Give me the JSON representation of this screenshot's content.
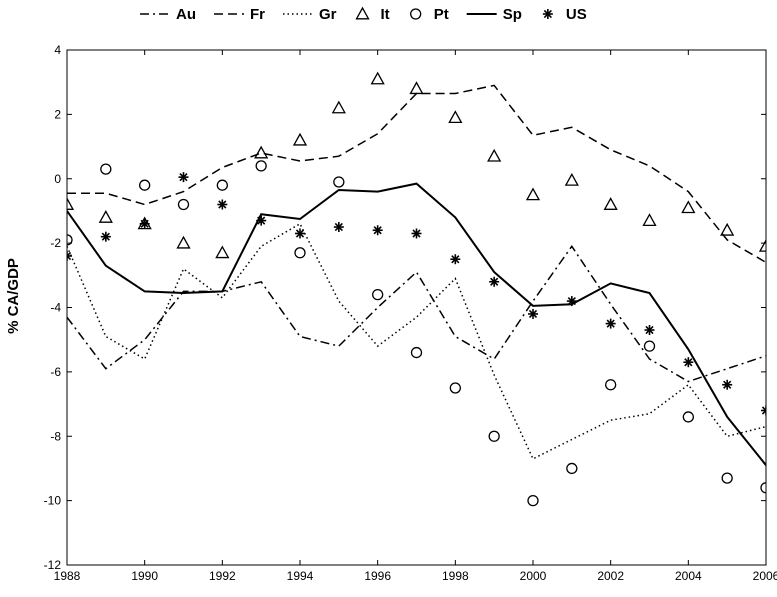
{
  "chart_data": {
    "type": "line",
    "ylabel": "% CA/GDP",
    "xlim": [
      1988,
      2006
    ],
    "ylim": [
      -12,
      4
    ],
    "xticks": [
      1988,
      1990,
      1992,
      1994,
      1996,
      1998,
      2000,
      2002,
      2004,
      2006
    ],
    "yticks": [
      -12,
      -10,
      -8,
      -6,
      -4,
      -2,
      0,
      2,
      4
    ],
    "grid": false,
    "legend_position": "top",
    "x": [
      1988,
      1989,
      1990,
      1991,
      1992,
      1993,
      1994,
      1995,
      1996,
      1997,
      1998,
      1999,
      2000,
      2001,
      2002,
      2003,
      2004,
      2005,
      2006
    ],
    "series": [
      {
        "name": "Au",
        "style": "dashdot",
        "values": [
          -4.3,
          -5.9,
          -5.0,
          -3.5,
          -3.5,
          -3.2,
          -4.9,
          -5.2,
          -4.0,
          -2.9,
          -4.9,
          -5.6,
          -3.8,
          -2.1,
          -3.9,
          -5.6,
          -6.3,
          -5.9,
          -5.5
        ]
      },
      {
        "name": "Fr",
        "style": "dashed",
        "values": [
          -0.45,
          -0.45,
          -0.8,
          -0.4,
          0.35,
          0.8,
          0.55,
          0.7,
          1.4,
          2.65,
          2.65,
          2.9,
          1.35,
          1.6,
          0.9,
          0.4,
          -0.4,
          -1.9,
          -2.6
        ]
      },
      {
        "name": "Gr",
        "style": "dotted",
        "values": [
          -2.1,
          -4.9,
          -5.6,
          -2.8,
          -3.7,
          -2.1,
          -1.4,
          -3.8,
          -5.2,
          -4.3,
          -3.1,
          -6.1,
          -8.7,
          -8.1,
          -7.5,
          -7.3,
          -6.4,
          -8.0,
          -7.7
        ]
      },
      {
        "name": "It",
        "style": "triangle",
        "values": [
          -0.8,
          -1.2,
          -1.4,
          -2.0,
          -2.3,
          0.8,
          1.2,
          2.2,
          3.1,
          2.8,
          1.9,
          0.7,
          -0.5,
          -0.05,
          -0.8,
          -1.3,
          -0.9,
          -1.6,
          -2.1
        ]
      },
      {
        "name": "Pt",
        "style": "circle",
        "values": [
          -1.9,
          0.3,
          -0.2,
          -0.8,
          -0.2,
          0.4,
          -2.3,
          -0.1,
          -3.6,
          -5.4,
          -6.5,
          -8.0,
          -10.0,
          -9.0,
          -6.4,
          -5.2,
          -7.4,
          -9.3,
          -9.6
        ]
      },
      {
        "name": "Sp",
        "style": "solid",
        "values": [
          -1.0,
          -2.7,
          -3.5,
          -3.55,
          -3.5,
          -1.1,
          -1.25,
          -0.35,
          -0.4,
          -0.15,
          -1.2,
          -2.9,
          -3.95,
          -3.9,
          -3.25,
          -3.55,
          -5.3,
          -7.4,
          -8.9
        ]
      },
      {
        "name": "US",
        "style": "asterisk",
        "values": [
          -2.4,
          -1.8,
          -1.4,
          0.05,
          -0.8,
          -1.3,
          -1.7,
          -1.5,
          -1.6,
          -1.7,
          -2.5,
          -3.2,
          -4.2,
          -3.8,
          -4.5,
          -4.7,
          -5.7,
          -6.4,
          -7.2
        ]
      }
    ]
  }
}
